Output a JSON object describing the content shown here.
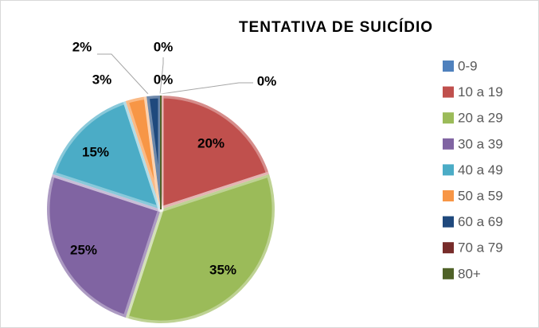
{
  "chart_data": {
    "type": "pie",
    "title": "TENTATIVA DE SUICÍDIO",
    "categories": [
      "0-9",
      "10 a 19",
      "20 a 29",
      "30 a 39",
      "40 a 49",
      "50 a 59",
      "60 a 69",
      "70 a 79",
      "80+"
    ],
    "values": [
      0,
      20,
      35,
      25,
      15,
      3,
      2,
      0,
      0
    ],
    "value_labels": [
      "0%",
      "20%",
      "35%",
      "25%",
      "15%",
      "3%",
      "2%",
      "0%",
      "0%"
    ],
    "colors": [
      "#4f81bd",
      "#c0504d",
      "#9bbb59",
      "#8064a2",
      "#4bacc6",
      "#f79646",
      "#1f497d",
      "#772c2a",
      "#4f6228"
    ],
    "legend": "right"
  }
}
